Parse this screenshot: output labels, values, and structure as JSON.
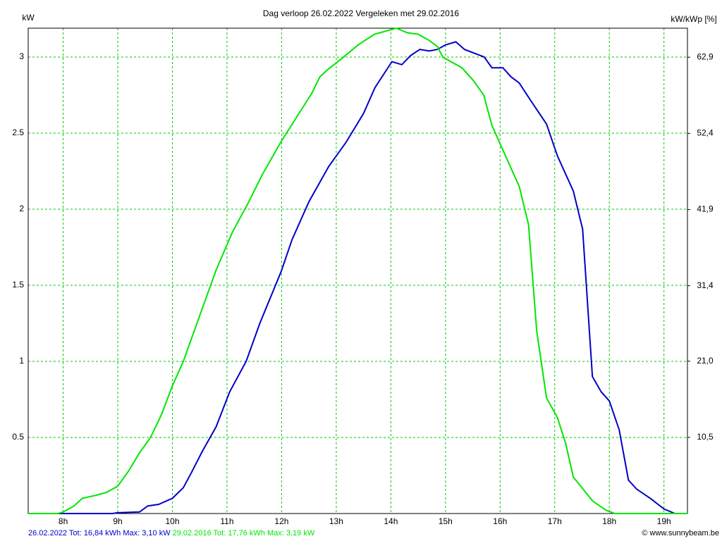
{
  "chart_data": {
    "type": "line",
    "title": "Dag  verloop 26.02.2022   Vergeleken met 29.02.2016",
    "y_label": "kW",
    "y2_label": "kW/kWp [%]",
    "xlim": [
      7.36,
      19.43
    ],
    "xticks": [
      {
        "value": 8,
        "label": "8h"
      },
      {
        "value": 9,
        "label": "9h"
      },
      {
        "value": 10,
        "label": "10h"
      },
      {
        "value": 11,
        "label": "11h"
      },
      {
        "value": 12,
        "label": "12h"
      },
      {
        "value": 13,
        "label": "13h"
      },
      {
        "value": 14,
        "label": "14h"
      },
      {
        "value": 15,
        "label": "15h"
      },
      {
        "value": 16,
        "label": "16h"
      },
      {
        "value": 17,
        "label": "17h"
      },
      {
        "value": 18,
        "label": "18h"
      },
      {
        "value": 19,
        "label": "19h"
      }
    ],
    "ylim": [
      0,
      3.19
    ],
    "yticks": [
      0.5,
      1,
      1.5,
      2,
      2.5,
      3
    ],
    "y2lim": [
      0,
      66.9
    ],
    "y2ticks": [
      {
        "value": 10.5,
        "label": "10,5"
      },
      {
        "value": 21.0,
        "label": "21,0"
      },
      {
        "value": 31.4,
        "label": "31,4"
      },
      {
        "value": 41.9,
        "label": "41,9"
      },
      {
        "value": 52.4,
        "label": "52,4"
      },
      {
        "value": 62.9,
        "label": "62,9"
      }
    ],
    "grid": true,
    "grid_color": "#00c800",
    "series": [
      {
        "name": "26.02.2022 Tot: 16,84 kWh Max: 3,10 kW",
        "color": "#0000c8",
        "x": [
          7.36,
          8.9,
          9.0,
          9.4,
          9.55,
          9.75,
          10.0,
          10.2,
          10.35,
          10.55,
          10.8,
          11.05,
          11.35,
          11.6,
          11.99,
          12.19,
          12.5,
          12.86,
          13.18,
          13.5,
          13.71,
          14.02,
          14.2,
          14.36,
          14.53,
          14.7,
          14.85,
          15.0,
          15.19,
          15.35,
          15.71,
          15.85,
          16.05,
          16.2,
          16.35,
          16.55,
          16.85,
          17.05,
          17.34,
          17.51,
          17.69,
          17.85,
          18.0,
          18.18,
          18.35,
          18.5,
          18.75,
          19.0,
          19.2,
          19.43
        ],
        "values": [
          0,
          0,
          0.005,
          0.01,
          0.05,
          0.06,
          0.1,
          0.17,
          0.27,
          0.41,
          0.57,
          0.8,
          1.0,
          1.25,
          1.59,
          1.8,
          2.05,
          2.28,
          2.44,
          2.63,
          2.8,
          2.97,
          2.95,
          3.01,
          3.05,
          3.04,
          3.05,
          3.08,
          3.1,
          3.05,
          3.0,
          2.93,
          2.93,
          2.87,
          2.83,
          2.72,
          2.56,
          2.35,
          2.12,
          1.87,
          0.9,
          0.8,
          0.74,
          0.55,
          0.22,
          0.16,
          0.1,
          0.03,
          0,
          0
        ]
      },
      {
        "name": "29.02.2016 Tot: 17,76 kWh Max: 3,19 kW",
        "color": "#00e600",
        "x": [
          7.36,
          7.9,
          8.0,
          8.2,
          8.35,
          8.6,
          8.8,
          9.0,
          9.2,
          9.4,
          9.6,
          9.8,
          10.0,
          10.2,
          10.5,
          10.8,
          11.1,
          11.4,
          11.65,
          12.0,
          12.3,
          12.55,
          12.7,
          12.85,
          13.1,
          13.4,
          13.7,
          14.0,
          14.1,
          14.3,
          14.5,
          14.7,
          14.85,
          14.95,
          15.3,
          15.5,
          15.7,
          15.85,
          16.1,
          16.35,
          16.52,
          16.67,
          16.85,
          17.05,
          17.2,
          17.34,
          17.7,
          17.95,
          18.1,
          19.43
        ],
        "values": [
          0,
          0,
          0.01,
          0.05,
          0.1,
          0.12,
          0.14,
          0.18,
          0.28,
          0.4,
          0.5,
          0.65,
          0.84,
          1.0,
          1.3,
          1.6,
          1.85,
          2.05,
          2.23,
          2.45,
          2.62,
          2.76,
          2.87,
          2.92,
          2.99,
          3.08,
          3.15,
          3.18,
          3.19,
          3.16,
          3.15,
          3.11,
          3.07,
          3.0,
          2.93,
          2.85,
          2.75,
          2.55,
          2.35,
          2.15,
          1.9,
          1.2,
          0.76,
          0.63,
          0.46,
          0.24,
          0.08,
          0.02,
          0,
          0
        ]
      }
    ],
    "credit": "© www.sunnybeam.be"
  }
}
